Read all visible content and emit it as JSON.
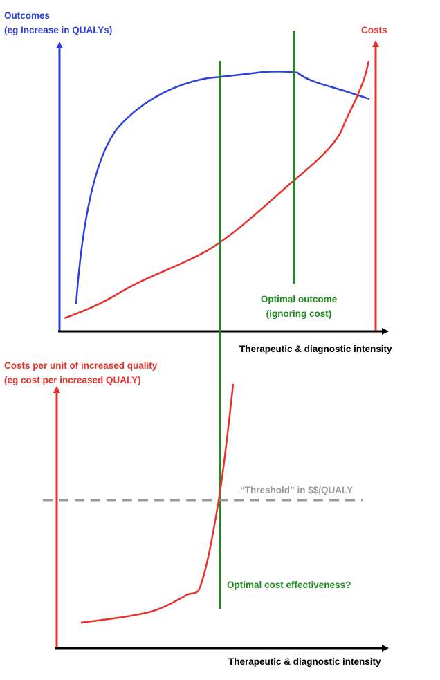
{
  "top_chart": {
    "y_left_label": [
      "Outcomes",
      "(eg Increase in QUALYs)"
    ],
    "y_right_label": "Costs",
    "x_label": "Therapeutic & diagnostic intensity",
    "optimal_outcome_label": [
      "Optimal outcome",
      "(ignoring cost)"
    ]
  },
  "bottom_chart": {
    "y_label": [
      "Costs per unit of increased quality",
      "(eg cost per increased QUALY)"
    ],
    "x_label": "Therapeutic & diagnostic intensity",
    "threshold_label": "“Threshold” in $$/QUALY",
    "optimal_cost_effectiveness_label": "Optimal cost effectiveness?"
  },
  "colors": {
    "outcomes": "#2d3fdc",
    "costs": "#e8312a",
    "optimal_lines": "#1f8a1f",
    "threshold": "#9a9a9a",
    "axis": "#000000"
  }
}
